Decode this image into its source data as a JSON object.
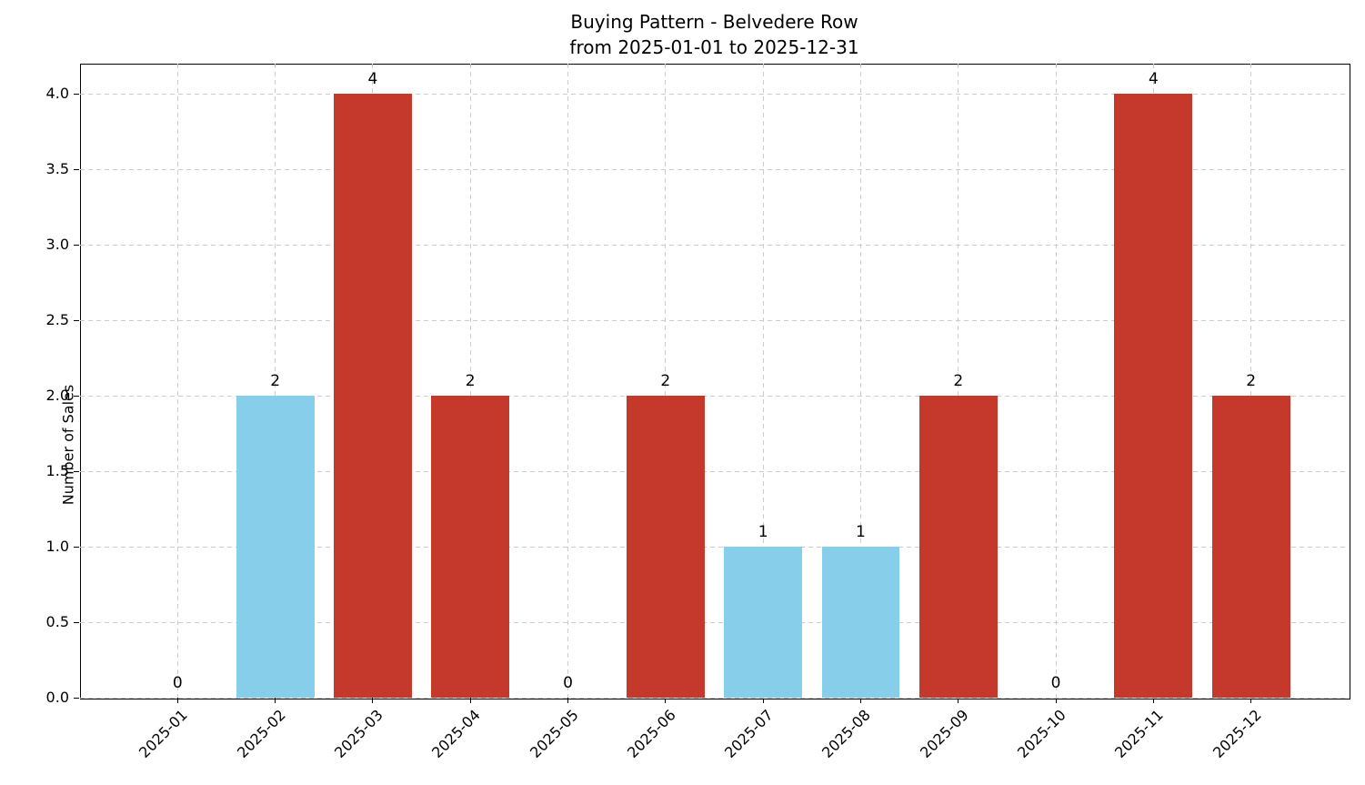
{
  "title": {
    "line1": "Buying Pattern - Belvedere Row",
    "line2": "from 2025-01-01 to 2025-12-31"
  },
  "chart_data": {
    "type": "bar",
    "title": "Buying Pattern - Belvedere Row from 2025-01-01 to 2025-12-31",
    "categories": [
      "2025-01",
      "2025-02",
      "2025-03",
      "2025-04",
      "2025-05",
      "2025-06",
      "2025-07",
      "2025-08",
      "2025-09",
      "2025-10",
      "2025-11",
      "2025-12"
    ],
    "values": [
      0,
      2,
      4,
      2,
      0,
      2,
      1,
      1,
      2,
      0,
      4,
      2
    ],
    "data_labels": [
      "0",
      "2",
      "4",
      "2",
      "0",
      "2",
      "1",
      "1",
      "2",
      "0",
      "4",
      "2"
    ],
    "bar_colors": [
      "#c4392b",
      "#87ceeb",
      "#c4392b",
      "#c4392b",
      "#c4392b",
      "#c4392b",
      "#87ceeb",
      "#87ceeb",
      "#c4392b",
      "#c4392b",
      "#c4392b",
      "#c4392b"
    ],
    "xlabel": "",
    "ylabel": "Number of Sales",
    "ylim": [
      0,
      4.2
    ],
    "yticks": [
      "0.0",
      "0.5",
      "1.0",
      "1.5",
      "2.0",
      "2.5",
      "3.0",
      "3.5",
      "4.0"
    ],
    "grid": true,
    "grid_linestyle": "dashed",
    "legend": "none",
    "colors": {
      "red_bar": "#c4392b",
      "blue_bar": "#87ceeb",
      "grid": "#cccccc",
      "axis": "#000000",
      "text": "#000000",
      "background": "#ffffff"
    }
  }
}
